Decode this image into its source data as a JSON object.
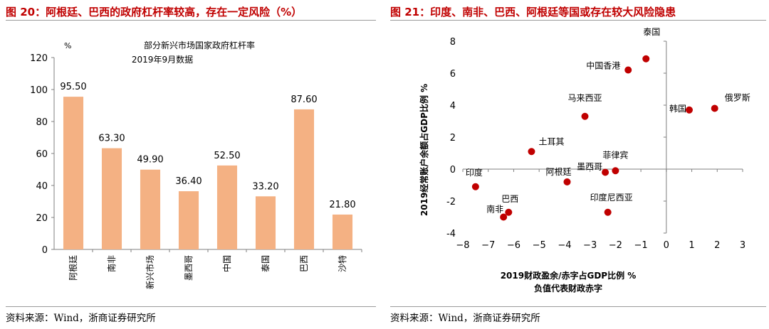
{
  "left": {
    "title": "图 20：阿根廷、巴西的政府杠杆率较高，存在一定风险（%）",
    "source": "资料来源：Wind，浙商证券研究所",
    "chart_data": {
      "type": "bar",
      "unit_label": "%",
      "title": "部分新兴市场国家政府杠杆率",
      "subtitle": "2019年9月数据",
      "categories": [
        "阿根廷",
        "南非",
        "新兴市场",
        "墨西哥",
        "中国",
        "泰国",
        "巴西",
        "沙特"
      ],
      "values": [
        95.5,
        63.3,
        49.9,
        36.4,
        52.5,
        33.2,
        87.6,
        21.8
      ],
      "value_labels": [
        "95.50",
        "63.30",
        "49.90",
        "36.40",
        "52.50",
        "33.20",
        "87.60",
        "21.80"
      ],
      "ylim": [
        0,
        120
      ],
      "yticks": [
        0,
        20,
        40,
        60,
        80,
        100,
        120
      ],
      "bar_color": "#f4b183",
      "grid": false
    }
  },
  "right": {
    "title": "图 21：印度、南非、巴西、阿根廷等国或存在较大风险隐患",
    "source": "资料来源：Wind，浙商证券研究所",
    "chart_data": {
      "type": "scatter",
      "xlabel": "2019财政盈余/赤字占GDP比例 %",
      "xlabel2": "负值代表财政赤字",
      "ylabel": "2019经常账户余额占GDP比例 %",
      "xlim": [
        -8,
        3
      ],
      "ylim": [
        -4,
        8
      ],
      "xticks": [
        -8,
        -7,
        -6,
        -5,
        -4,
        -3,
        -2,
        -1,
        0,
        1,
        2,
        3
      ],
      "yticks": [
        -4,
        -2,
        0,
        2,
        4,
        6,
        8
      ],
      "point_color": "#c00000",
      "grid": false,
      "points": [
        {
          "label": "泰国",
          "x": -0.8,
          "y": 6.9
        },
        {
          "label": "中国香港",
          "x": -1.5,
          "y": 6.2
        },
        {
          "label": "马来西亚",
          "x": -3.2,
          "y": 3.3
        },
        {
          "label": "韩国",
          "x": 0.9,
          "y": 3.7
        },
        {
          "label": "俄罗斯",
          "x": 1.9,
          "y": 3.8
        },
        {
          "label": "土耳其",
          "x": -5.3,
          "y": 1.1
        },
        {
          "label": "菲律宾",
          "x": -2.0,
          "y": -0.1
        },
        {
          "label": "墨西哥",
          "x": -2.4,
          "y": -0.2
        },
        {
          "label": "阿根廷",
          "x": -3.9,
          "y": -0.8
        },
        {
          "label": "印度",
          "x": -7.5,
          "y": -1.1
        },
        {
          "label": "巴西",
          "x": -6.2,
          "y": -2.7
        },
        {
          "label": "南非",
          "x": -6.4,
          "y": -3.0
        },
        {
          "label": "印度尼西亚",
          "x": -2.3,
          "y": -2.7
        }
      ]
    }
  }
}
